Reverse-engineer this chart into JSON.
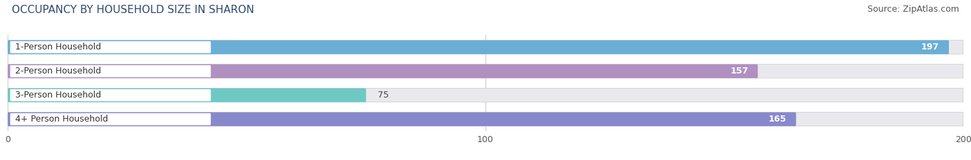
{
  "title": "OCCUPANCY BY HOUSEHOLD SIZE IN SHARON",
  "source": "Source: ZipAtlas.com",
  "categories": [
    "1-Person Household",
    "2-Person Household",
    "3-Person Household",
    "4+ Person Household"
  ],
  "values": [
    197,
    157,
    75,
    165
  ],
  "bar_colors": [
    "#6aaed6",
    "#b090c0",
    "#6ec9c4",
    "#8888cc"
  ],
  "background_color": "#ffffff",
  "bar_bg_color": "#e8e8ed",
  "xlim": [
    0,
    200
  ],
  "xticks": [
    0,
    100,
    200
  ],
  "bar_height": 0.58,
  "label_bg_color": "#ffffff",
  "label_text_color": "#333333",
  "value_color": "#ffffff",
  "title_fontsize": 11,
  "source_fontsize": 9,
  "label_fontsize": 9,
  "value_fontsize": 9
}
